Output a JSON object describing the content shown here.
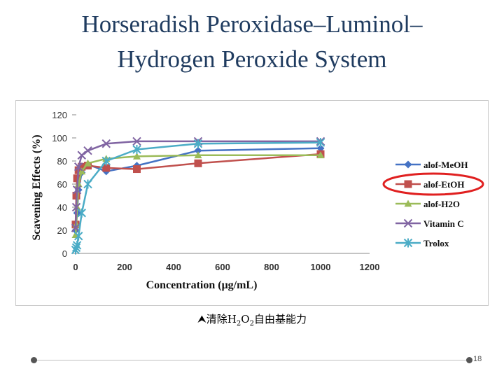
{
  "slide": {
    "title_line1": "Horseradish Peroxidase–Luminol–",
    "title_line2": "Hydrogen Peroxide System",
    "caption_prefix": "清除H",
    "caption_sub1": "2",
    "caption_mid": "O",
    "caption_sub2": "2",
    "caption_suffix": "自由基能力",
    "page_number": "18"
  },
  "colors": {
    "title": "#1f3b5f",
    "highlight_ellipse": "#e02020"
  },
  "chart_data": {
    "type": "line",
    "title": "",
    "xlabel": "Concentration (μg/mL)",
    "ylabel": "Scavening Effects (%)",
    "xlim": [
      0,
      1200
    ],
    "ylim": [
      0,
      120
    ],
    "xticks": [
      0,
      200,
      400,
      600,
      800,
      1000,
      1200
    ],
    "yticks": [
      0,
      20,
      40,
      60,
      80,
      100,
      120
    ],
    "grid": false,
    "legend_position": "right",
    "series": [
      {
        "name": "alof-MeOH",
        "color": "#4472c4",
        "marker": "diamond",
        "x": [
          0,
          3,
          6,
          12,
          25,
          50,
          125,
          250,
          500,
          1000
        ],
        "y": [
          20,
          25,
          35,
          55,
          70,
          77,
          71,
          76,
          89,
          91
        ]
      },
      {
        "name": "alof-EtOH",
        "color": "#c0504d",
        "marker": "square",
        "x": [
          0,
          3,
          6,
          12,
          25,
          50,
          125,
          250,
          500,
          1000
        ],
        "y": [
          25,
          50,
          65,
          72,
          75,
          76,
          74,
          73,
          78,
          86
        ]
      },
      {
        "name": "alof-H2O",
        "color": "#9bbb59",
        "marker": "triangle",
        "x": [
          0,
          3,
          6,
          12,
          25,
          50,
          125,
          250,
          500,
          1000
        ],
        "y": [
          16,
          25,
          40,
          60,
          71,
          78,
          82,
          84,
          85,
          85
        ]
      },
      {
        "name": "Vitamin C",
        "color": "#8064a2",
        "marker": "x",
        "x": [
          0,
          3,
          6,
          12,
          25,
          50,
          125,
          250,
          500,
          1000
        ],
        "y": [
          22,
          40,
          55,
          75,
          85,
          89,
          95,
          97,
          97,
          97
        ]
      },
      {
        "name": "Trolox",
        "color": "#4bacc6",
        "marker": "star",
        "x": [
          0,
          3,
          6,
          12,
          25,
          50,
          125,
          250,
          500,
          1000
        ],
        "y": [
          3,
          5,
          7,
          15,
          35,
          60,
          80,
          90,
          95,
          96
        ]
      }
    ]
  }
}
